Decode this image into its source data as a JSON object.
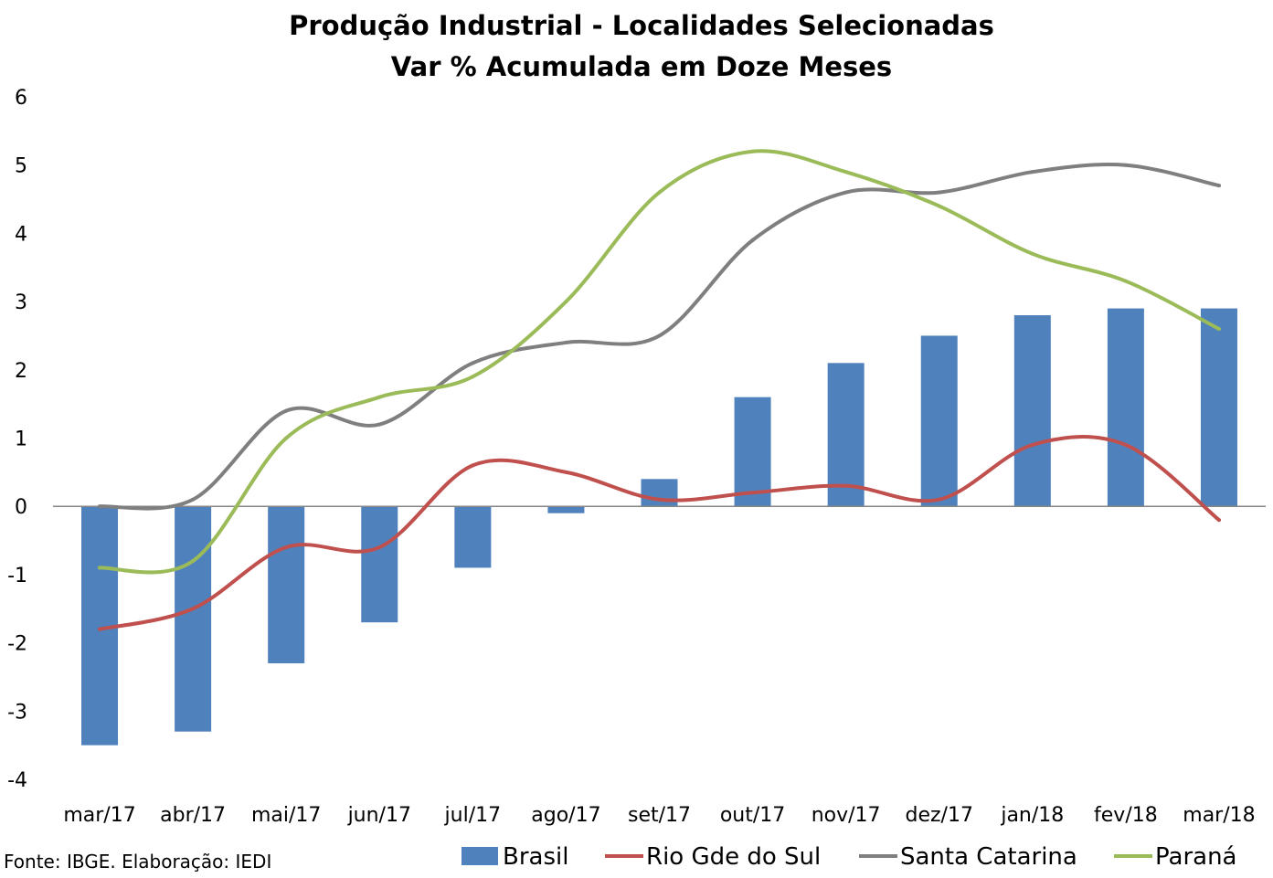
{
  "chart_data": {
    "type": "bar",
    "title": "Produção Industrial - Localidades Selecionadas",
    "subtitle": "Var % Acumulada em Doze Meses",
    "categories": [
      "mar/17",
      "abr/17",
      "mai/17",
      "jun/17",
      "jul/17",
      "ago/17",
      "set/17",
      "out/17",
      "nov/17",
      "dez/17",
      "jan/18",
      "fev/18",
      "mar/18"
    ],
    "ylim": [
      -4,
      6
    ],
    "yticks": [
      -4,
      -3,
      -2,
      -1,
      0,
      1,
      2,
      3,
      4,
      5,
      6
    ],
    "grid": false,
    "legend_position": "bottom",
    "series": [
      {
        "name": "Brasil",
        "kind": "bar",
        "color": "#4F81BD",
        "values": [
          -3.5,
          -3.3,
          -2.3,
          -1.7,
          -0.9,
          -0.1,
          0.4,
          1.6,
          2.1,
          2.5,
          2.8,
          2.9,
          2.9
        ]
      },
      {
        "name": "Rio Gde do Sul",
        "kind": "line",
        "color": "#C0504D",
        "values": [
          -1.8,
          -1.5,
          -0.6,
          -0.6,
          0.6,
          0.5,
          0.1,
          0.2,
          0.3,
          0.1,
          0.9,
          0.9,
          -0.2
        ]
      },
      {
        "name": "Santa Catarina",
        "kind": "line",
        "color": "#7F7F7F",
        "values": [
          0.0,
          0.1,
          1.4,
          1.2,
          2.1,
          2.4,
          2.5,
          3.9,
          4.6,
          4.6,
          4.9,
          5.0,
          4.7
        ]
      },
      {
        "name": "Paraná",
        "kind": "line",
        "color": "#9BBB59",
        "values": [
          -0.9,
          -0.8,
          1.0,
          1.6,
          1.9,
          3.0,
          4.6,
          5.2,
          4.9,
          4.4,
          3.7,
          3.3,
          2.6
        ]
      }
    ]
  },
  "footer": {
    "source": "Fonte: IBGE. Elaboração: IEDI"
  }
}
